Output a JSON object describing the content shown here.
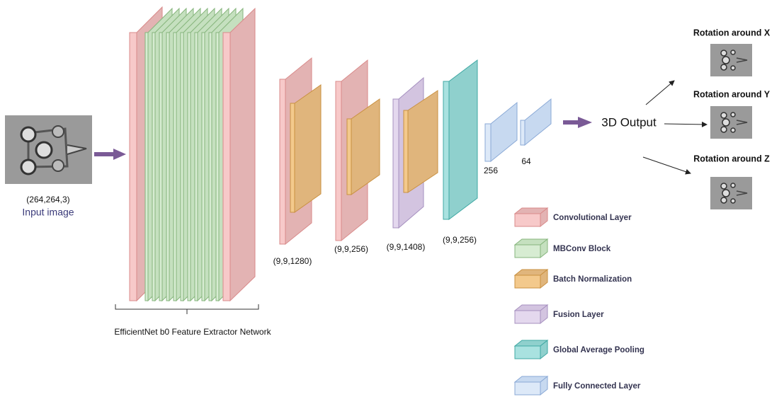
{
  "input": {
    "shape": "(264,264,3)",
    "label": "Input image"
  },
  "extractor": {
    "label": "EfficientNet b0 Feature Extractor Network"
  },
  "stages": [
    {
      "shape": "(9,9,1280)"
    },
    {
      "shape": "(9,9,256)"
    },
    {
      "shape": "(9,9,1408)"
    },
    {
      "shape": "(9,9,256)"
    }
  ],
  "dense": [
    {
      "units": "256"
    },
    {
      "units": "64"
    }
  ],
  "output": {
    "label": "3D Output",
    "rotations": [
      "Rotation around X",
      "Rotation around Y",
      "Rotation around Z"
    ]
  },
  "legend": [
    "Convolutional Layer",
    "MBConv Block",
    "Batch Normalization",
    "Fusion Layer",
    "Global Average Pooling",
    "Fully Connected Layer"
  ]
}
